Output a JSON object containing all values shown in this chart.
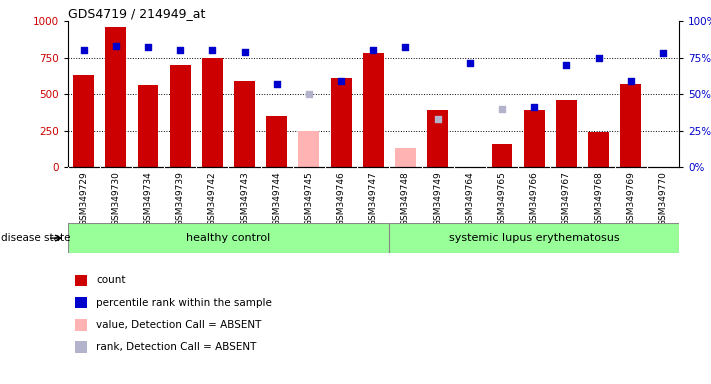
{
  "title": "GDS4719 / 214949_at",
  "samples": [
    "GSM349729",
    "GSM349730",
    "GSM349734",
    "GSM349739",
    "GSM349742",
    "GSM349743",
    "GSM349744",
    "GSM349745",
    "GSM349746",
    "GSM349747",
    "GSM349748",
    "GSM349749",
    "GSM349764",
    "GSM349765",
    "GSM349766",
    "GSM349767",
    "GSM349768",
    "GSM349769",
    "GSM349770"
  ],
  "counts": [
    630,
    960,
    560,
    700,
    750,
    590,
    350,
    null,
    610,
    780,
    null,
    390,
    null,
    160,
    390,
    460,
    240,
    570,
    null
  ],
  "counts_absent": [
    null,
    null,
    null,
    null,
    null,
    null,
    null,
    245,
    null,
    null,
    130,
    null,
    null,
    null,
    null,
    null,
    null,
    null,
    null
  ],
  "ranks": [
    80,
    83,
    82,
    80,
    80,
    79,
    57,
    null,
    59,
    80,
    82,
    null,
    71,
    null,
    41,
    70,
    75,
    59,
    78
  ],
  "ranks_absent": [
    null,
    null,
    null,
    null,
    null,
    null,
    null,
    50,
    null,
    null,
    null,
    33,
    null,
    40,
    null,
    null,
    null,
    null,
    null
  ],
  "group_boundary": 10,
  "group1_label": "healthy control",
  "group2_label": "systemic lupus erythematosus",
  "disease_state_label": "disease state",
  "ylim_left": [
    0,
    1000
  ],
  "ylim_right": [
    0,
    100
  ],
  "yticks_left": [
    0,
    250,
    500,
    750,
    1000
  ],
  "yticks_right": [
    0,
    25,
    50,
    75,
    100
  ],
  "bar_color_present": "#cc0000",
  "bar_color_absent": "#ffb3b3",
  "rank_color_present": "#0000cc",
  "rank_color_absent": "#b3b3cc",
  "group_bg_color": "#99ff99",
  "sample_bg_color": "#d4d4d4",
  "legend_items": [
    {
      "color": "#cc0000",
      "label": "count"
    },
    {
      "color": "#0000cc",
      "label": "percentile rank within the sample"
    },
    {
      "color": "#ffb3b3",
      "label": "value, Detection Call = ABSENT"
    },
    {
      "color": "#b3b3cc",
      "label": "rank, Detection Call = ABSENT"
    }
  ]
}
